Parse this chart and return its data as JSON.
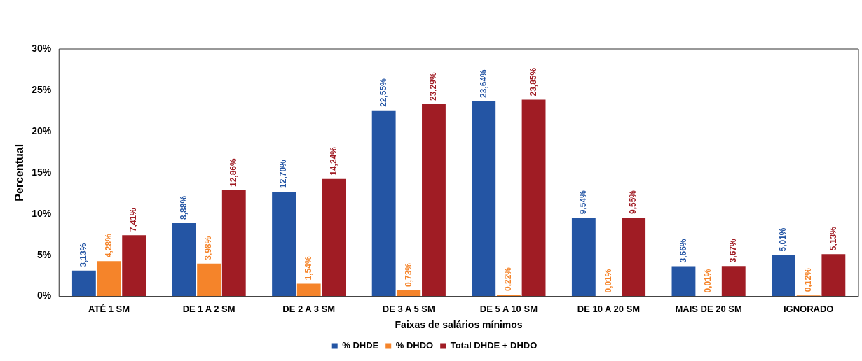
{
  "chart_data": {
    "type": "bar",
    "xlabel": "Faixas de salários mínimos",
    "ylabel": "Percentual",
    "categories": [
      "ATÉ 1 SM",
      "DE 1 A 2 SM",
      "DE 2 A 3 SM",
      "DE 3 A 5 SM",
      "DE 5 A 10 SM",
      "DE 10 A 20 SM",
      "MAIS DE 20 SM",
      "IGNORADO"
    ],
    "series": [
      {
        "name": "% DHDE",
        "color": "#2455a4",
        "values": [
          3.13,
          8.88,
          12.7,
          22.55,
          23.64,
          9.54,
          3.66,
          5.01
        ],
        "value_labels": [
          "3,13%",
          "8,88%",
          "12,70%",
          "22,55%",
          "23,64%",
          "9,54%",
          "3,66%",
          "5,01%"
        ]
      },
      {
        "name": "% DHDO",
        "color": "#f5842a",
        "values": [
          4.28,
          3.98,
          1.54,
          0.73,
          0.22,
          0.01,
          0.01,
          0.12
        ],
        "value_labels": [
          "4,28%",
          "3,98%",
          "1,54%",
          "0,73%",
          "0,22%",
          "0,01%",
          "0,01%",
          "0,12%"
        ]
      },
      {
        "name": "Total DHDE + DHDO",
        "color": "#a01c24",
        "values": [
          7.41,
          12.86,
          14.24,
          23.29,
          23.85,
          9.55,
          3.67,
          5.13
        ],
        "value_labels": [
          "7,41%",
          "12,86%",
          "14,24%",
          "23,29%",
          "23,85%",
          "9,55%",
          "3,67%",
          "5,13%"
        ]
      }
    ],
    "ylim": [
      0,
      30
    ],
    "yticks": [
      {
        "value": 0,
        "label": "0%"
      },
      {
        "value": 5,
        "label": "5%"
      },
      {
        "value": 10,
        "label": "10%"
      },
      {
        "value": 15,
        "label": "15%"
      },
      {
        "value": 20,
        "label": "20%"
      },
      {
        "value": 25,
        "label": "25%"
      },
      {
        "value": 30,
        "label": "30%"
      }
    ],
    "grid": false,
    "legend": "bottom"
  }
}
